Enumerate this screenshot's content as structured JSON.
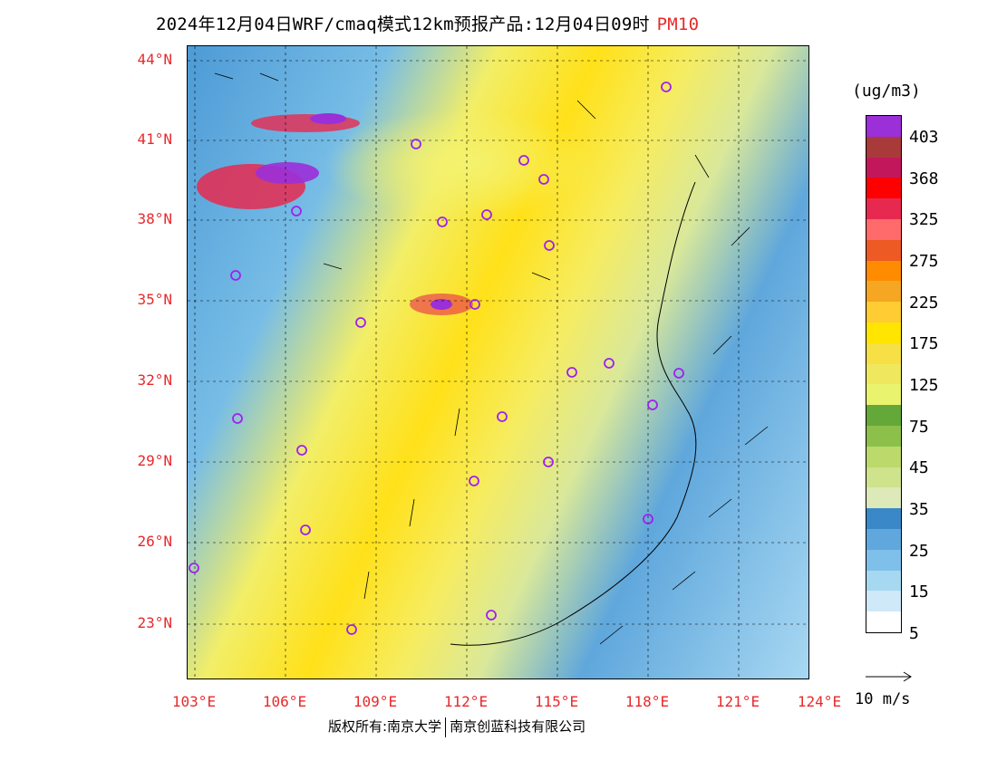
{
  "title": {
    "text": "2024年12月04日WRF/cmaq模式12km预报产品:12月04日09时",
    "pollutant": "PM10"
  },
  "axes": {
    "lat_labels": [
      "44°N",
      "41°N",
      "38°N",
      "35°N",
      "32°N",
      "29°N",
      "26°N",
      "23°N"
    ],
    "lon_labels": [
      "103°E",
      "106°E",
      "109°E",
      "112°E",
      "115°E",
      "118°E",
      "121°E",
      "124°E"
    ]
  },
  "colorbar": {
    "unit": "(ug/m3)",
    "labels": [
      "403",
      "368",
      "325",
      "275",
      "225",
      "175",
      "125",
      "75",
      "45",
      "35",
      "25",
      "15",
      "5"
    ],
    "colors": [
      "#9b2fd8",
      "#a83a3a",
      "#c2185b",
      "#ff0000",
      "#e8294f",
      "#ff6a6a",
      "#ee5a24",
      "#ff8c00",
      "#f5a623",
      "#ffcc33",
      "#ffe500",
      "#f7df46",
      "#efe85e",
      "#e9f36d",
      "#65a83a",
      "#8cc04a",
      "#bcd96b",
      "#cfe28c",
      "#dde9b8",
      "#3a88c8",
      "#5fa7dc",
      "#7fc0ea",
      "#a6d8f2",
      "#cfe9f8",
      "#ffffff"
    ]
  },
  "wind_legend": {
    "label": "10 m/s"
  },
  "copyright": {
    "left": "版权所有:南京大学",
    "right": "南京创蓝科技有限公司"
  }
}
